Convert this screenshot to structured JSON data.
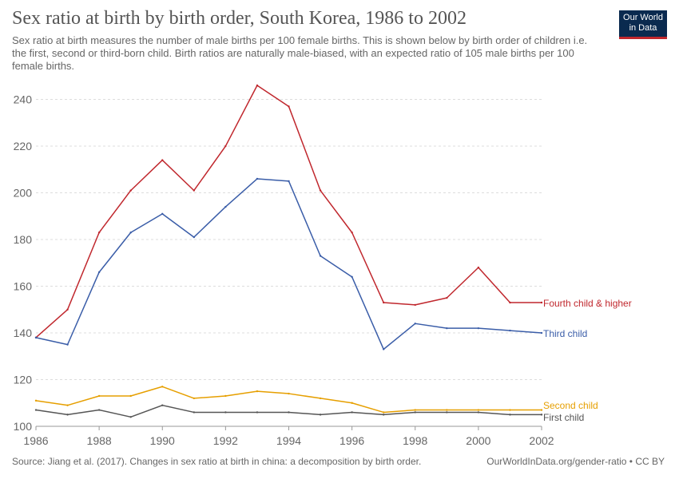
{
  "header": {
    "title": "Sex ratio at birth by birth order, South Korea, 1986 to 2002",
    "subtitle": "Sex ratio at birth measures the number of male births per 100 female births. This is shown below by birth order of children i.e. the first, second or third-born child. Birth ratios are naturally male-biased, with an expected ratio of 105 male births per 100 female births."
  },
  "logo": {
    "line1": "Our World",
    "line2": "in Data"
  },
  "footer": {
    "source": "Source: Jiang et al. (2017). Changes in sex ratio at birth in china: a decomposition by birth order.",
    "credit": "OurWorldInData.org/gender-ratio • CC BY"
  },
  "colors": {
    "fourth": "#c0272d",
    "third": "#3a5da8",
    "second": "#e69f00",
    "first": "#555555",
    "grid": "#dddddd"
  },
  "chart_data": {
    "type": "line",
    "title": "Sex ratio at birth by birth order, South Korea, 1986 to 2002",
    "xlabel": "",
    "ylabel": "",
    "xlim": [
      1986,
      2002
    ],
    "ylim": [
      100,
      246
    ],
    "x_ticks": [
      1986,
      1988,
      1990,
      1992,
      1994,
      1996,
      1998,
      2000,
      2002
    ],
    "y_ticks": [
      100,
      120,
      140,
      160,
      180,
      200,
      220,
      240
    ],
    "grid": true,
    "legend": "labels at line ends (right)",
    "x": [
      1986,
      1987,
      1988,
      1989,
      1990,
      1991,
      1992,
      1993,
      1994,
      1995,
      1996,
      1997,
      1998,
      1999,
      2000,
      2001,
      2002
    ],
    "series": [
      {
        "name": "Fourth child & higher",
        "color_key": "fourth",
        "values": [
          138,
          150,
          183,
          201,
          214,
          201,
          220,
          246,
          237,
          201,
          183,
          153,
          152,
          155,
          168,
          153,
          153
        ]
      },
      {
        "name": "Third child",
        "color_key": "third",
        "values": [
          138,
          135,
          166,
          183,
          191,
          181,
          194,
          206,
          205,
          173,
          164,
          133,
          144,
          142,
          142,
          141,
          140
        ]
      },
      {
        "name": "Second child",
        "color_key": "second",
        "values": [
          111,
          109,
          113,
          113,
          117,
          112,
          113,
          115,
          114,
          112,
          110,
          106,
          107,
          107,
          107,
          107,
          107
        ]
      },
      {
        "name": "First child",
        "color_key": "first",
        "values": [
          107,
          105,
          107,
          104,
          109,
          106,
          106,
          106,
          106,
          105,
          106,
          105,
          106,
          106,
          106,
          105,
          105
        ]
      }
    ]
  }
}
